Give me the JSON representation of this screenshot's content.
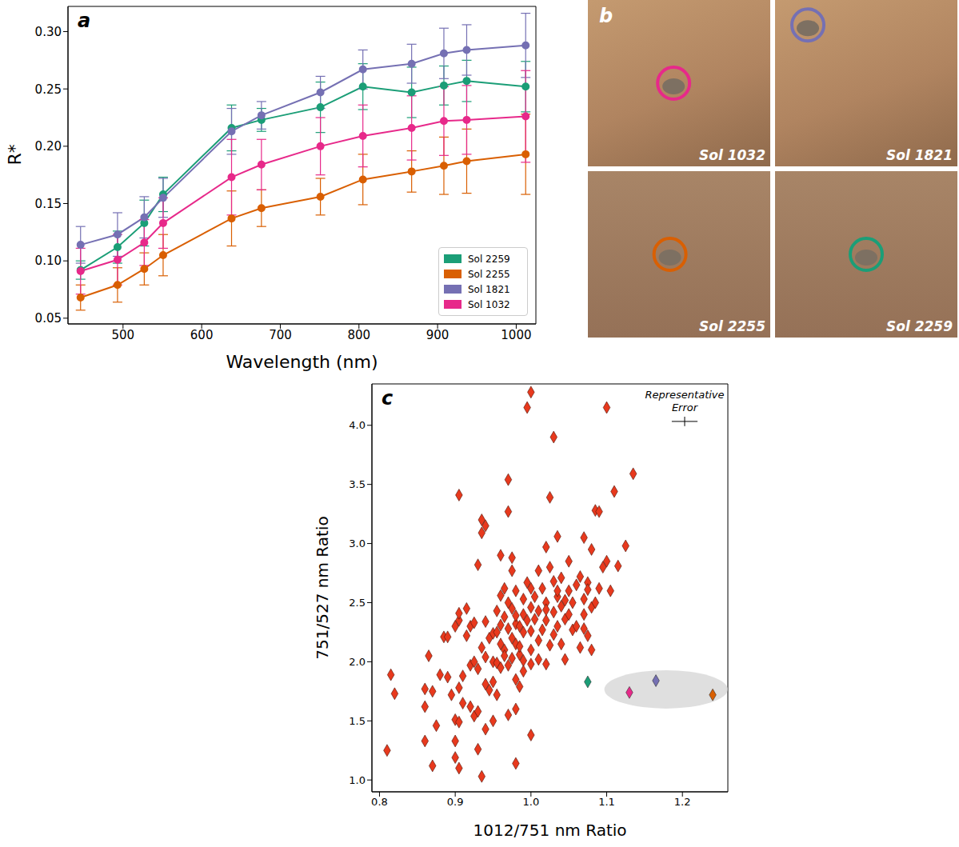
{
  "chart_data": [
    {
      "type": "line",
      "panel_label": "a",
      "x_label": "Wavelength (nm)",
      "y_label": "R*",
      "x": [
        446,
        493,
        527,
        551,
        638,
        676,
        751,
        805,
        867,
        908,
        937,
        1012
      ],
      "series": [
        {
          "name": "Sol 2259",
          "color": "#1b9e77",
          "values": [
            0.092,
            0.112,
            0.133,
            0.158,
            0.216,
            0.223,
            0.234,
            0.252,
            0.247,
            0.253,
            0.257,
            0.252
          ],
          "errors": [
            0.008,
            0.014,
            0.02,
            0.015,
            0.02,
            0.01,
            0.022,
            0.02,
            0.022,
            0.017,
            0.018,
            0.022
          ]
        },
        {
          "name": "Sol 2255",
          "color": "#d95f02",
          "values": [
            0.068,
            0.079,
            0.093,
            0.105,
            0.137,
            0.146,
            0.156,
            0.171,
            0.178,
            0.183,
            0.187,
            0.193
          ],
          "errors": [
            0.011,
            0.015,
            0.014,
            0.018,
            0.024,
            0.016,
            0.016,
            0.022,
            0.018,
            0.025,
            0.028,
            0.035
          ]
        },
        {
          "name": "Sol 1821",
          "color": "#7570b3",
          "values": [
            0.114,
            0.123,
            0.138,
            0.155,
            0.213,
            0.227,
            0.247,
            0.267,
            0.272,
            0.281,
            0.284,
            0.288
          ],
          "errors": [
            0.016,
            0.019,
            0.018,
            0.017,
            0.02,
            0.012,
            0.014,
            0.017,
            0.017,
            0.022,
            0.022,
            0.028
          ]
        },
        {
          "name": "Sol 1032",
          "color": "#e7298a",
          "values": [
            0.091,
            0.101,
            0.116,
            0.133,
            0.173,
            0.184,
            0.2,
            0.209,
            0.216,
            0.222,
            0.223,
            0.226
          ],
          "errors": [
            0.02,
            0.022,
            0.02,
            0.022,
            0.033,
            0.022,
            0.025,
            0.027,
            0.028,
            0.03,
            0.03,
            0.04
          ]
        }
      ],
      "marker": "circle",
      "xlim": [
        430,
        1025
      ],
      "xticks": [
        500,
        600,
        700,
        800,
        900,
        1000
      ],
      "ylim": [
        0.045,
        0.322
      ],
      "yticks": [
        0.05,
        {
          "value": 0.1,
          "label": "0.10"
        },
        0.15,
        {
          "value": 0.2,
          "label": "0.20"
        },
        0.25,
        {
          "value": 0.3,
          "label": "0.30"
        }
      ],
      "legend": "lower right"
    },
    {
      "type": "scatter",
      "panel_label": "c",
      "x_label": "1012/751 nm Ratio",
      "y_label": "751/527 nm Ratio",
      "color": "#e8391d",
      "marker": "diamond",
      "points": [
        [
          0.81,
          1.25
        ],
        [
          0.815,
          1.89
        ],
        [
          0.82,
          1.73
        ],
        [
          0.86,
          1.62
        ],
        [
          0.86,
          1.77
        ],
        [
          0.86,
          1.33
        ],
        [
          0.865,
          2.05
        ],
        [
          0.87,
          1.12
        ],
        [
          0.87,
          1.75
        ],
        [
          0.875,
          1.46
        ],
        [
          0.88,
          1.89
        ],
        [
          0.885,
          2.21
        ],
        [
          0.89,
          2.21
        ],
        [
          0.89,
          1.87
        ],
        [
          0.895,
          1.72
        ],
        [
          0.9,
          1.33
        ],
        [
          0.9,
          1.19
        ],
        [
          0.9,
          1.51
        ],
        [
          0.905,
          1.78
        ],
        [
          0.905,
          1.49
        ],
        [
          0.9,
          2.3
        ],
        [
          0.905,
          2.35
        ],
        [
          0.905,
          2.41
        ],
        [
          0.905,
          3.41
        ],
        [
          0.905,
          1.1
        ],
        [
          0.91,
          1.88
        ],
        [
          0.915,
          2.22
        ],
        [
          0.91,
          1.65
        ],
        [
          0.915,
          2.45
        ],
        [
          0.92,
          1.97
        ],
        [
          0.92,
          1.62
        ],
        [
          0.92,
          2.3
        ],
        [
          0.925,
          2.0
        ],
        [
          0.925,
          2.33
        ],
        [
          0.925,
          1.54
        ],
        [
          0.93,
          1.58
        ],
        [
          0.93,
          1.26
        ],
        [
          0.93,
          1.94
        ],
        [
          0.93,
          2.82
        ],
        [
          0.935,
          1.03
        ],
        [
          0.935,
          3.2
        ],
        [
          0.935,
          3.09
        ],
        [
          0.935,
          2.12
        ],
        [
          0.94,
          1.43
        ],
        [
          0.94,
          1.81
        ],
        [
          0.94,
          2.04
        ],
        [
          0.94,
          2.34
        ],
        [
          0.94,
          3.15
        ],
        [
          0.945,
          1.76
        ],
        [
          0.945,
          2.2
        ],
        [
          0.95,
          2.0
        ],
        [
          0.95,
          2.24
        ],
        [
          0.95,
          1.83
        ],
        [
          0.95,
          1.5
        ],
        [
          0.955,
          1.72
        ],
        [
          0.955,
          1.99
        ],
        [
          0.955,
          2.25
        ],
        [
          0.955,
          2.43
        ],
        [
          0.96,
          2.15
        ],
        [
          0.96,
          1.95
        ],
        [
          0.96,
          2.31
        ],
        [
          0.96,
          2.56
        ],
        [
          0.96,
          2.9
        ],
        [
          0.965,
          2.1
        ],
        [
          0.965,
          2.38
        ],
        [
          0.965,
          2.05
        ],
        [
          0.965,
          2.62
        ],
        [
          0.97,
          2.28
        ],
        [
          0.97,
          1.97
        ],
        [
          0.97,
          2.5
        ],
        [
          0.97,
          3.27
        ],
        [
          0.97,
          3.54
        ],
        [
          0.97,
          1.55
        ],
        [
          0.975,
          2.45
        ],
        [
          0.975,
          2.2
        ],
        [
          0.975,
          2.03
        ],
        [
          0.975,
          2.77
        ],
        [
          0.975,
          2.88
        ],
        [
          0.98,
          1.6
        ],
        [
          0.98,
          1.14
        ],
        [
          0.98,
          1.85
        ],
        [
          0.98,
          2.15
        ],
        [
          0.98,
          2.32
        ],
        [
          0.98,
          2.39
        ],
        [
          0.98,
          2.6
        ],
        [
          0.985,
          2.3
        ],
        [
          0.985,
          1.79
        ],
        [
          0.985,
          2.06
        ],
        [
          0.99,
          2.25
        ],
        [
          0.99,
          2.53
        ],
        [
          0.99,
          2.4
        ],
        [
          0.99,
          2.01
        ],
        [
          0.995,
          2.35
        ],
        [
          0.995,
          4.15
        ],
        [
          0.995,
          2.67
        ],
        [
          1.0,
          2.26
        ],
        [
          1.0,
          2.46
        ],
        [
          1.0,
          2.62
        ],
        [
          1.0,
          4.28
        ],
        [
          1.0,
          2.1
        ],
        [
          1.0,
          1.98
        ],
        [
          1.0,
          1.38
        ],
        [
          1.005,
          2.36
        ],
        [
          1.005,
          2.55
        ],
        [
          1.01,
          2.18
        ],
        [
          1.01,
          2.43
        ],
        [
          1.01,
          2.77
        ],
        [
          1.01,
          2.02
        ],
        [
          1.015,
          2.27
        ],
        [
          1.015,
          2.62
        ],
        [
          1.02,
          2.35
        ],
        [
          1.02,
          2.5
        ],
        [
          1.02,
          2.97
        ],
        [
          1.02,
          1.98
        ],
        [
          1.025,
          3.39
        ],
        [
          1.025,
          2.14
        ],
        [
          1.025,
          2.8
        ],
        [
          1.03,
          3.9
        ],
        [
          1.03,
          2.42
        ],
        [
          1.03,
          2.23
        ],
        [
          1.03,
          2.68
        ],
        [
          1.035,
          2.55
        ],
        [
          1.035,
          3.06
        ],
        [
          1.035,
          2.3
        ],
        [
          1.04,
          2.15
        ],
        [
          1.04,
          2.47
        ],
        [
          1.04,
          2.71
        ],
        [
          1.045,
          2.36
        ],
        [
          1.045,
          2.02
        ],
        [
          1.05,
          2.6
        ],
        [
          1.05,
          2.4
        ],
        [
          1.05,
          2.85
        ],
        [
          1.055,
          2.5
        ],
        [
          1.055,
          2.27
        ],
        [
          1.06,
          2.65
        ],
        [
          1.06,
          2.3
        ],
        [
          1.065,
          2.72
        ],
        [
          1.065,
          2.12
        ],
        [
          1.07,
          2.53
        ],
        [
          1.07,
          2.4
        ],
        [
          1.075,
          2.67
        ],
        [
          1.075,
          2.22
        ],
        [
          1.08,
          2.1
        ],
        [
          1.08,
          2.46
        ],
        [
          1.08,
          2.95
        ],
        [
          1.085,
          2.5
        ],
        [
          1.085,
          3.28
        ],
        [
          1.09,
          3.27
        ],
        [
          1.09,
          2.62
        ],
        [
          1.095,
          2.8
        ],
        [
          1.1,
          2.85
        ],
        [
          1.1,
          4.15
        ],
        [
          1.105,
          2.6
        ],
        [
          1.11,
          3.44
        ],
        [
          1.115,
          2.81
        ],
        [
          1.125,
          2.98
        ],
        [
          1.135,
          3.59
        ],
        [
          1.075,
          2.61
        ],
        [
          1.07,
          2.28
        ],
        [
          1.07,
          3.05
        ],
        [
          1.045,
          2.52
        ],
        [
          1.035,
          2.6
        ],
        [
          1.02,
          2.44
        ],
        [
          0.99,
          1.92
        ],
        [
          0.985,
          2.13
        ]
      ],
      "highlighted": [
        {
          "x": 1.075,
          "y": 1.83,
          "color": "#1b9e77"
        }
      ],
      "circled": [
        {
          "x": 1.13,
          "y": 1.74,
          "color": "#e7298a"
        },
        {
          "x": 1.165,
          "y": 1.84,
          "color": "#7570b3"
        },
        {
          "x": 1.24,
          "y": 1.72,
          "color": "#d95f02"
        }
      ],
      "representative_error": {
        "label": "Representative Error",
        "x_err": 0.017,
        "y_err": 0.04
      },
      "xlim": [
        0.79,
        1.26
      ],
      "xticks": [
        0.8,
        0.9,
        {
          "value": 1,
          "label": "1.0"
        },
        1.1,
        1.2
      ],
      "ylim": [
        0.9,
        4.35
      ],
      "yticks": [
        {
          "value": 1,
          "label": "1.0"
        },
        1.5,
        {
          "value": 2,
          "label": "2.0"
        },
        2.5,
        {
          "value": 3,
          "label": "3.0"
        },
        3.5,
        {
          "value": 4,
          "label": "4.0"
        }
      ]
    }
  ],
  "images": {
    "panel_label": "b",
    "photos": [
      {
        "label": "Sol 1032",
        "color": "#e7298a"
      },
      {
        "label": "Sol 1821",
        "color": "#7570b3"
      },
      {
        "label": "Sol 2255",
        "color": "#d95f02"
      },
      {
        "label": "Sol 2259",
        "color": "#1b9e77"
      }
    ]
  }
}
